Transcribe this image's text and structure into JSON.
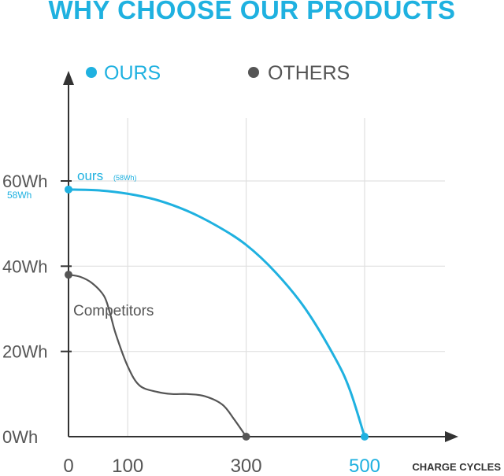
{
  "title": "WHY CHOOSE OUR PRODUCTS",
  "colors": {
    "ours": "#1fb1e0",
    "others": "#555555",
    "axis": "#333333",
    "grid": "#e0e0e0"
  },
  "chart_data": {
    "type": "line",
    "xlabel": "CHARGE CYCLES",
    "ylabel": "",
    "xlim": [
      0,
      500
    ],
    "ylim": [
      0,
      60
    ],
    "grid": true,
    "x_ticks": [
      {
        "value": 0,
        "label": "0"
      },
      {
        "value": 100,
        "label": "100"
      },
      {
        "value": 300,
        "label": "300"
      },
      {
        "value": 500,
        "label": "500"
      }
    ],
    "y_ticks": [
      {
        "value": 0,
        "label": "0Wh"
      },
      {
        "value": 20,
        "label": "20Wh"
      },
      {
        "value": 40,
        "label": "40Wh"
      },
      {
        "value": 60,
        "label": "60Wh"
      }
    ],
    "legend": [
      {
        "label": "OURS",
        "color": "#1fb1e0"
      },
      {
        "label": "OTHERS",
        "color": "#555555"
      }
    ],
    "legend_position": "top",
    "series": [
      {
        "name": "ours",
        "color": "#1fb1e0",
        "x": [
          0,
          50,
          100,
          150,
          200,
          250,
          300,
          350,
          400,
          450,
          475,
          500
        ],
        "y": [
          58,
          57.8,
          57,
          55.5,
          53,
          49.5,
          45,
          38.5,
          30,
          18.5,
          11,
          0
        ]
      },
      {
        "name": "Competitors",
        "color": "#555555",
        "x": [
          0,
          20,
          40,
          60,
          70,
          80,
          100,
          120,
          150,
          175,
          200,
          230,
          260,
          280,
          300
        ],
        "y": [
          38,
          37.5,
          36,
          33,
          29,
          24,
          16.5,
          12,
          10.5,
          10,
          10,
          9.5,
          7.5,
          4,
          0
        ]
      }
    ],
    "annotations": [
      {
        "text": "ours",
        "small": "(58Wh)",
        "color": "#1fb1e0"
      },
      {
        "text": "58Wh",
        "at_y": 58,
        "color": "#1fb1e0"
      },
      {
        "text": "Competitors",
        "color": "#555555"
      }
    ],
    "highlight_x_label": "500"
  }
}
